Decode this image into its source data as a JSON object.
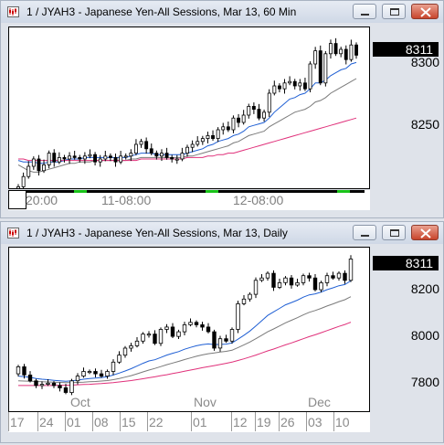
{
  "windows": [
    {
      "title": "1 / JYAH3 - Japanese Yen-All Sessions, Mar 13, 60 Min",
      "last_price": "8311",
      "price_labels": [
        "8300",
        "8250"
      ],
      "time_labels": [
        "20:00",
        "11-08:00",
        "12-08:00"
      ]
    },
    {
      "title": "1 / JYAH3 - Japanese Yen-All Sessions, Mar 13, Daily",
      "last_price": "8311",
      "price_labels": [
        "8200",
        "8000",
        "7800"
      ],
      "month_labels": [
        "Oct",
        "Nov",
        "Dec"
      ],
      "date_labels": [
        "17",
        "24",
        "01",
        "08",
        "15",
        "22",
        "01",
        "12",
        "19",
        "26",
        "03",
        "10"
      ]
    }
  ],
  "colors": {
    "up_candle": "#ffffff",
    "down_candle": "#000000",
    "ma_fast": "#1f5fd4",
    "ma_mid": "#7a7a7a",
    "ma_slow": "#e0307a",
    "session_marker": "#19c319"
  },
  "chart_data": [
    {
      "type": "candlestick",
      "title": "1 / JYAH3 - Japanese Yen-All Sessions, Mar 13, 60 Min",
      "xlabel": "",
      "ylabel": "",
      "ylim": [
        8220,
        8330
      ],
      "y_ticks": [
        8250,
        8300
      ],
      "x_ticks": [
        "20:00",
        "11-08:00",
        "12-08:00"
      ],
      "last_price": 8311,
      "candles_close": [
        8221,
        8228,
        8235,
        8240,
        8232,
        8236,
        8244,
        8238,
        8241,
        8240,
        8242,
        8241,
        8240,
        8242,
        8243,
        8238,
        8240,
        8242,
        8241,
        8238,
        8242,
        8242,
        8244,
        8250,
        8252,
        8247,
        8244,
        8242,
        8244,
        8241,
        8240,
        8240,
        8244,
        8248,
        8250,
        8252,
        8254,
        8256,
        8254,
        8260,
        8262,
        8260,
        8268,
        8265,
        8270,
        8276,
        8274,
        8268,
        8272,
        8285,
        8290,
        8288,
        8292,
        8293,
        8290,
        8292,
        8288,
        8305,
        8314,
        8292,
        8312,
        8319,
        8312,
        8315,
        8308,
        8318,
        8311
      ],
      "series": [
        {
          "name": "",
          "values": [
            8239,
            8238,
            8238,
            8238,
            8237,
            8237,
            8238,
            8238,
            8238,
            8239,
            8240,
            8240,
            8240,
            8241,
            8241,
            8241,
            8241,
            8241,
            8241,
            8241,
            8241,
            8241,
            8242,
            8243,
            8244,
            8244,
            8244,
            8243,
            8243,
            8243,
            8243,
            8243,
            8243,
            8244,
            8245,
            8246,
            8247,
            8249,
            8250,
            8252,
            8253,
            8254,
            8256,
            8257,
            8259,
            8262,
            8263,
            8264,
            8265,
            8268,
            8272,
            8275,
            8278,
            8281,
            8282,
            8284,
            8285,
            8288,
            8292,
            8292,
            8294,
            8297,
            8299,
            8301,
            8302,
            8305,
            8306
          ]
        },
        {
          "name": "",
          "values": [
            8236,
            8234,
            8232,
            8231,
            8231,
            8232,
            8233,
            8234,
            8235,
            8236,
            8237,
            8237,
            8238,
            8238,
            8238,
            8239,
            8239,
            8239,
            8239,
            8239,
            8239,
            8239,
            8240,
            8240,
            8241,
            8241,
            8241,
            8241,
            8241,
            8241,
            8241,
            8241,
            8241,
            8242,
            8242,
            8243,
            8244,
            8245,
            8246,
            8247,
            8248,
            8249,
            8251,
            8252,
            8254,
            8256,
            8257,
            8258,
            8259,
            8262,
            8264,
            8266,
            8268,
            8270,
            8272,
            8273,
            8274,
            8276,
            8279,
            8280,
            8282,
            8285,
            8287,
            8289,
            8291,
            8293,
            8295
          ]
        },
        {
          "name": "",
          "values": [
            8240,
            8240,
            8239,
            8239,
            8239,
            8239,
            8239,
            8239,
            8239,
            8239,
            8239,
            8239,
            8239,
            8239,
            8239,
            8239,
            8239,
            8239,
            8239,
            8239,
            8239,
            8239,
            8239,
            8239,
            8240,
            8240,
            8240,
            8240,
            8240,
            8240,
            8240,
            8240,
            8240,
            8241,
            8241,
            8241,
            8241,
            8242,
            8242,
            8243,
            8243,
            8244,
            8244,
            8245,
            8246,
            8247,
            8248,
            8249,
            8250,
            8251,
            8252,
            8253,
            8254,
            8255,
            8256,
            8257,
            8258,
            8259,
            8260,
            8261,
            8262,
            8263,
            8264,
            8265,
            8266,
            8267,
            8268
          ]
        }
      ]
    },
    {
      "type": "candlestick",
      "title": "1 / JYAH3 - Japanese Yen-All Sessions, Mar 13, Daily",
      "xlabel": "",
      "ylabel": "",
      "ylim": [
        7660,
        8360
      ],
      "y_ticks": [
        7800,
        8000,
        8200
      ],
      "x_ticks": [
        "17",
        "24",
        "01",
        "08",
        "15",
        "22",
        "01",
        "12",
        "19",
        "26",
        "03",
        "10"
      ],
      "month_ticks": [
        "Oct",
        "Nov",
        "Dec"
      ],
      "last_price": 8311,
      "candles_close": [
        7850,
        7815,
        7790,
        7770,
        7775,
        7780,
        7770,
        7760,
        7740,
        7790,
        7810,
        7830,
        7830,
        7820,
        7810,
        7830,
        7870,
        7900,
        7930,
        7940,
        7960,
        7990,
        7990,
        7950,
        8010,
        8020,
        7980,
        8000,
        8030,
        8040,
        8030,
        8020,
        8000,
        7930,
        7970,
        7960,
        8010,
        8120,
        8140,
        8160,
        8220,
        8230,
        8250,
        8190,
        8210,
        8230,
        8200,
        8210,
        8240,
        8230,
        8180,
        8210,
        8240,
        8230,
        8250,
        8220,
        8311
      ],
      "series": [
        {
          "name": "",
          "values": [
            7810,
            7808,
            7805,
            7800,
            7797,
            7795,
            7792,
            7790,
            7788,
            7790,
            7793,
            7797,
            7800,
            7802,
            7804,
            7808,
            7815,
            7823,
            7832,
            7842,
            7853,
            7865,
            7875,
            7880,
            7890,
            7900,
            7908,
            7915,
            7925,
            7933,
            7940,
            7945,
            7948,
            7945,
            7946,
            7947,
            7952,
            7968,
            7985,
            8003,
            8025,
            8047,
            8070,
            8085,
            8100,
            8115,
            8125,
            8135,
            8148,
            8158,
            8162,
            8170,
            8180,
            8188,
            8197,
            8202,
            8218
          ]
        },
        {
          "name": "",
          "values": [
            7790,
            7789,
            7788,
            7787,
            7786,
            7785,
            7784,
            7783,
            7782,
            7782,
            7783,
            7784,
            7786,
            7787,
            7789,
            7791,
            7795,
            7800,
            7806,
            7812,
            7820,
            7828,
            7836,
            7843,
            7851,
            7859,
            7866,
            7873,
            7881,
            7888,
            7895,
            7901,
            7906,
            7909,
            7913,
            7916,
            7921,
            7932,
            7944,
            7956,
            7970,
            7985,
            8000,
            8012,
            8025,
            8038,
            8049,
            8060,
            8072,
            8083,
            8091,
            8100,
            8110,
            8119,
            8129,
            8137,
            8150
          ]
        },
        {
          "name": "",
          "values": [
            7770,
            7770,
            7770,
            7770,
            7770,
            7770,
            7770,
            7771,
            7771,
            7772,
            7773,
            7774,
            7775,
            7777,
            7778,
            7780,
            7782,
            7785,
            7788,
            7791,
            7795,
            7799,
            7803,
            7807,
            7812,
            7816,
            7821,
            7826,
            7831,
            7836,
            7841,
            7846,
            7851,
            7855,
            7860,
            7865,
            7870,
            7877,
            7884,
            7892,
            7900,
            7909,
            7918,
            7926,
            7935,
            7944,
            7952,
            7961,
            7970,
            7979,
            7987,
            7996,
            8005,
            8014,
            8023,
            8031,
            8041
          ]
        }
      ]
    }
  ]
}
